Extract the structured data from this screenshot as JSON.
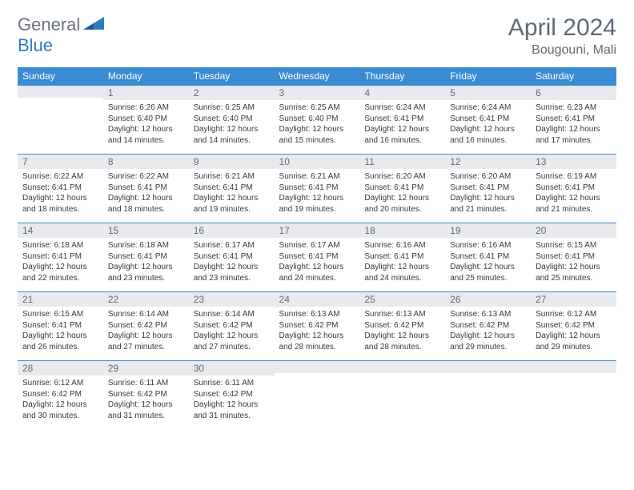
{
  "brand": {
    "part1": "General",
    "part2": "Blue"
  },
  "title": "April 2024",
  "location": "Bougouni, Mali",
  "weekday_labels": [
    "Sunday",
    "Monday",
    "Tuesday",
    "Wednesday",
    "Thursday",
    "Friday",
    "Saturday"
  ],
  "header_bg": "#3b8bd4",
  "header_fg": "#ffffff",
  "daybar_bg": "#e8eaed",
  "text_color": "#3a3a3a",
  "title_color": "#5f6b76",
  "weeks": [
    [
      {
        "n": "",
        "lines": []
      },
      {
        "n": "1",
        "lines": [
          "Sunrise: 6:26 AM",
          "Sunset: 6:40 PM",
          "Daylight: 12 hours",
          "and 14 minutes."
        ]
      },
      {
        "n": "2",
        "lines": [
          "Sunrise: 6:25 AM",
          "Sunset: 6:40 PM",
          "Daylight: 12 hours",
          "and 14 minutes."
        ]
      },
      {
        "n": "3",
        "lines": [
          "Sunrise: 6:25 AM",
          "Sunset: 6:40 PM",
          "Daylight: 12 hours",
          "and 15 minutes."
        ]
      },
      {
        "n": "4",
        "lines": [
          "Sunrise: 6:24 AM",
          "Sunset: 6:41 PM",
          "Daylight: 12 hours",
          "and 16 minutes."
        ]
      },
      {
        "n": "5",
        "lines": [
          "Sunrise: 6:24 AM",
          "Sunset: 6:41 PM",
          "Daylight: 12 hours",
          "and 16 minutes."
        ]
      },
      {
        "n": "6",
        "lines": [
          "Sunrise: 6:23 AM",
          "Sunset: 6:41 PM",
          "Daylight: 12 hours",
          "and 17 minutes."
        ]
      }
    ],
    [
      {
        "n": "7",
        "lines": [
          "Sunrise: 6:22 AM",
          "Sunset: 6:41 PM",
          "Daylight: 12 hours",
          "and 18 minutes."
        ]
      },
      {
        "n": "8",
        "lines": [
          "Sunrise: 6:22 AM",
          "Sunset: 6:41 PM",
          "Daylight: 12 hours",
          "and 18 minutes."
        ]
      },
      {
        "n": "9",
        "lines": [
          "Sunrise: 6:21 AM",
          "Sunset: 6:41 PM",
          "Daylight: 12 hours",
          "and 19 minutes."
        ]
      },
      {
        "n": "10",
        "lines": [
          "Sunrise: 6:21 AM",
          "Sunset: 6:41 PM",
          "Daylight: 12 hours",
          "and 19 minutes."
        ]
      },
      {
        "n": "11",
        "lines": [
          "Sunrise: 6:20 AM",
          "Sunset: 6:41 PM",
          "Daylight: 12 hours",
          "and 20 minutes."
        ]
      },
      {
        "n": "12",
        "lines": [
          "Sunrise: 6:20 AM",
          "Sunset: 6:41 PM",
          "Daylight: 12 hours",
          "and 21 minutes."
        ]
      },
      {
        "n": "13",
        "lines": [
          "Sunrise: 6:19 AM",
          "Sunset: 6:41 PM",
          "Daylight: 12 hours",
          "and 21 minutes."
        ]
      }
    ],
    [
      {
        "n": "14",
        "lines": [
          "Sunrise: 6:18 AM",
          "Sunset: 6:41 PM",
          "Daylight: 12 hours",
          "and 22 minutes."
        ]
      },
      {
        "n": "15",
        "lines": [
          "Sunrise: 6:18 AM",
          "Sunset: 6:41 PM",
          "Daylight: 12 hours",
          "and 23 minutes."
        ]
      },
      {
        "n": "16",
        "lines": [
          "Sunrise: 6:17 AM",
          "Sunset: 6:41 PM",
          "Daylight: 12 hours",
          "and 23 minutes."
        ]
      },
      {
        "n": "17",
        "lines": [
          "Sunrise: 6:17 AM",
          "Sunset: 6:41 PM",
          "Daylight: 12 hours",
          "and 24 minutes."
        ]
      },
      {
        "n": "18",
        "lines": [
          "Sunrise: 6:16 AM",
          "Sunset: 6:41 PM",
          "Daylight: 12 hours",
          "and 24 minutes."
        ]
      },
      {
        "n": "19",
        "lines": [
          "Sunrise: 6:16 AM",
          "Sunset: 6:41 PM",
          "Daylight: 12 hours",
          "and 25 minutes."
        ]
      },
      {
        "n": "20",
        "lines": [
          "Sunrise: 6:15 AM",
          "Sunset: 6:41 PM",
          "Daylight: 12 hours",
          "and 25 minutes."
        ]
      }
    ],
    [
      {
        "n": "21",
        "lines": [
          "Sunrise: 6:15 AM",
          "Sunset: 6:41 PM",
          "Daylight: 12 hours",
          "and 26 minutes."
        ]
      },
      {
        "n": "22",
        "lines": [
          "Sunrise: 6:14 AM",
          "Sunset: 6:42 PM",
          "Daylight: 12 hours",
          "and 27 minutes."
        ]
      },
      {
        "n": "23",
        "lines": [
          "Sunrise: 6:14 AM",
          "Sunset: 6:42 PM",
          "Daylight: 12 hours",
          "and 27 minutes."
        ]
      },
      {
        "n": "24",
        "lines": [
          "Sunrise: 6:13 AM",
          "Sunset: 6:42 PM",
          "Daylight: 12 hours",
          "and 28 minutes."
        ]
      },
      {
        "n": "25",
        "lines": [
          "Sunrise: 6:13 AM",
          "Sunset: 6:42 PM",
          "Daylight: 12 hours",
          "and 28 minutes."
        ]
      },
      {
        "n": "26",
        "lines": [
          "Sunrise: 6:13 AM",
          "Sunset: 6:42 PM",
          "Daylight: 12 hours",
          "and 29 minutes."
        ]
      },
      {
        "n": "27",
        "lines": [
          "Sunrise: 6:12 AM",
          "Sunset: 6:42 PM",
          "Daylight: 12 hours",
          "and 29 minutes."
        ]
      }
    ],
    [
      {
        "n": "28",
        "lines": [
          "Sunrise: 6:12 AM",
          "Sunset: 6:42 PM",
          "Daylight: 12 hours",
          "and 30 minutes."
        ]
      },
      {
        "n": "29",
        "lines": [
          "Sunrise: 6:11 AM",
          "Sunset: 6:42 PM",
          "Daylight: 12 hours",
          "and 31 minutes."
        ]
      },
      {
        "n": "30",
        "lines": [
          "Sunrise: 6:11 AM",
          "Sunset: 6:42 PM",
          "Daylight: 12 hours",
          "and 31 minutes."
        ]
      },
      {
        "n": "",
        "lines": []
      },
      {
        "n": "",
        "lines": []
      },
      {
        "n": "",
        "lines": []
      },
      {
        "n": "",
        "lines": []
      }
    ]
  ]
}
